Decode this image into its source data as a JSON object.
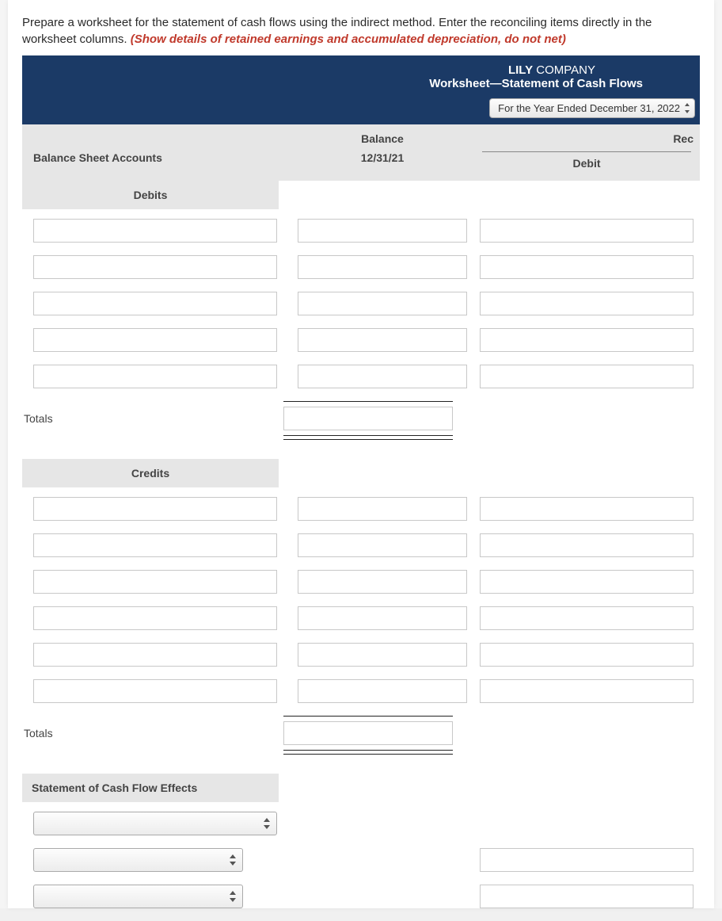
{
  "instructions": {
    "line1": "Prepare a worksheet for the statement of cash flows using the indirect method. Enter the reconciling items directly in the worksheet columns. ",
    "highlight": "(Show details of retained earnings and accumulated depreciation, do not net)"
  },
  "header": {
    "company_bold": "LILY",
    "company_rest": " COMPANY",
    "subtitle": "Worksheet—Statement of Cash Flows",
    "period": "For the Year Ended December 31, 2022"
  },
  "columns": {
    "accounts_label": "Balance Sheet Accounts",
    "balance_label": "Balance",
    "balance_date": "12/31/21",
    "reconciling_label": "Rec",
    "debit_label": "Debit"
  },
  "sections": {
    "debits_label": "Debits",
    "credits_label": "Credits",
    "cf_effects_label": "Statement of Cash Flow Effects",
    "totals_label": "Totals",
    "totals_label2": "Totals"
  },
  "debit_rows": 5,
  "credit_rows": 6,
  "cf_rows": 3,
  "colors": {
    "header_bg": "#1b3a66",
    "section_bg": "#e6e6e6",
    "highlight_text": "#c0392b",
    "input_border": "#c8c8c8"
  }
}
